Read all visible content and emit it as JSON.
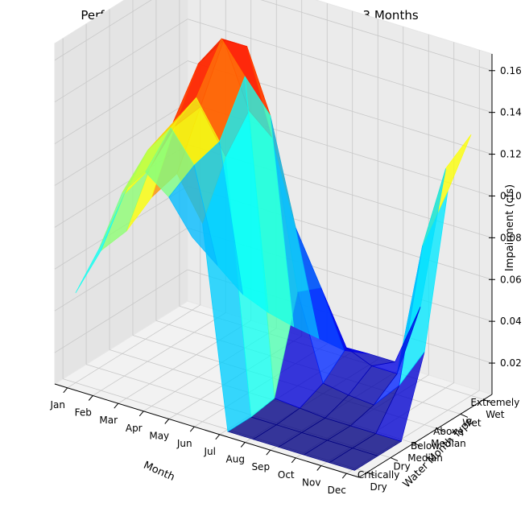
{
  "chart_data": {
    "type": "surface3d",
    "title": "Performance for LOI 9999, EPP 10/ Cnnbs Strg 3 Months",
    "xlabel": "Month",
    "ylabel": "Water Month Type",
    "zlabel": "Impairment (cfs)",
    "x_categories": [
      "Jan",
      "Feb",
      "Mar",
      "Apr",
      "May",
      "Jun",
      "Jul",
      "Aug",
      "Sep",
      "Oct",
      "Nov",
      "Dec"
    ],
    "y_categories": [
      [
        "Critically",
        "Dry"
      ],
      [
        "Dry"
      ],
      [
        "Below",
        "Median"
      ],
      [
        "Above",
        "Median"
      ],
      [
        "Wet"
      ],
      [
        "Extremely",
        "Wet"
      ]
    ],
    "z_ticks": [
      "0.02",
      "0.04",
      "0.06",
      "0.08",
      "0.10",
      "0.12",
      "0.14",
      "0.16"
    ],
    "zlim": [
      0.005,
      0.168
    ],
    "colormap": "jet",
    "grid": true,
    "values_by_type": {
      "Critically Dry": [
        0.048,
        0.072,
        0.085,
        0.105,
        0.12,
        0.1,
        0.004,
        0.004,
        0.004,
        0.004,
        0.004,
        0.004
      ],
      "Dry": [
        0.062,
        0.092,
        0.108,
        0.132,
        0.145,
        0.125,
        0.004,
        0.004,
        0.004,
        0.004,
        0.004,
        0.004
      ],
      "Below Median": [
        0.082,
        0.106,
        0.123,
        0.155,
        0.17,
        0.14,
        0.006,
        0.005,
        0.004,
        0.004,
        0.004,
        0.004
      ],
      "Above Median": [
        0.085,
        0.11,
        0.128,
        0.16,
        0.16,
        0.12,
        0.05,
        0.01,
        0.008,
        0.007,
        0.02,
        0.04
      ],
      "Wet": [
        0.066,
        0.085,
        0.1,
        0.135,
        0.12,
        0.07,
        0.045,
        0.02,
        0.015,
        0.015,
        0.08,
        0.11
      ],
      "Extremely Wet": [
        0.04,
        0.03,
        0.02,
        0.015,
        0.012,
        0.01,
        0.008,
        0.01,
        0.01,
        0.04,
        0.11,
        0.13
      ]
    }
  }
}
